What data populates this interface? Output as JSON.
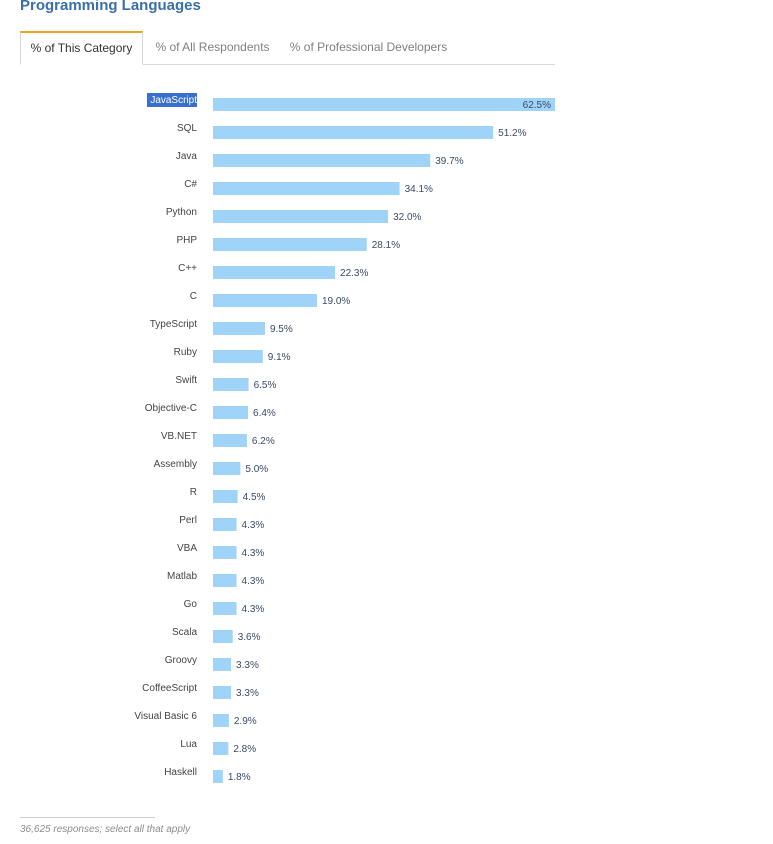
{
  "title": "Programming Languages",
  "tabs": [
    {
      "label": "% of This Category",
      "active": true
    },
    {
      "label": "% of All Respondents",
      "active": false
    },
    {
      "label": "% of Professional Developers",
      "active": false
    }
  ],
  "colors": {
    "bar": "#9fd3f8",
    "title": "#3a6fa8",
    "tab_accent": "#f0a31a",
    "selection": "#3a6fd0"
  },
  "chart_data": {
    "type": "bar",
    "orientation": "horizontal",
    "categories": [
      "JavaScript",
      "SQL",
      "Java",
      "C#",
      "Python",
      "PHP",
      "C++",
      "C",
      "TypeScript",
      "Ruby",
      "Swift",
      "Objective-C",
      "VB.NET",
      "Assembly",
      "R",
      "Perl",
      "VBA",
      "Matlab",
      "Go",
      "Scala",
      "Groovy",
      "CoffeeScript",
      "Visual Basic 6",
      "Lua",
      "Haskell"
    ],
    "values": [
      62.5,
      51.2,
      39.7,
      34.1,
      32.0,
      28.1,
      22.3,
      19.0,
      9.5,
      9.1,
      6.5,
      6.4,
      6.2,
      5.0,
      4.5,
      4.3,
      4.3,
      4.3,
      4.3,
      3.6,
      3.3,
      3.3,
      2.9,
      2.8,
      1.8
    ],
    "value_labels": [
      "62.5%",
      "51.2%",
      "39.7%",
      "34.1%",
      "32.0%",
      "28.1%",
      "22.3%",
      "19.0%",
      "9.5%",
      "9.1%",
      "6.5%",
      "6.4%",
      "6.2%",
      "5.0%",
      "4.5%",
      "4.3%",
      "4.3%",
      "4.3%",
      "4.3%",
      "3.6%",
      "3.3%",
      "3.3%",
      "2.9%",
      "2.8%",
      "1.8%"
    ],
    "xlim": [
      0,
      62.5
    ],
    "selected_category": "JavaScript",
    "grid": false,
    "legend": "none"
  },
  "footnote": "36,625 responses; select all that apply"
}
